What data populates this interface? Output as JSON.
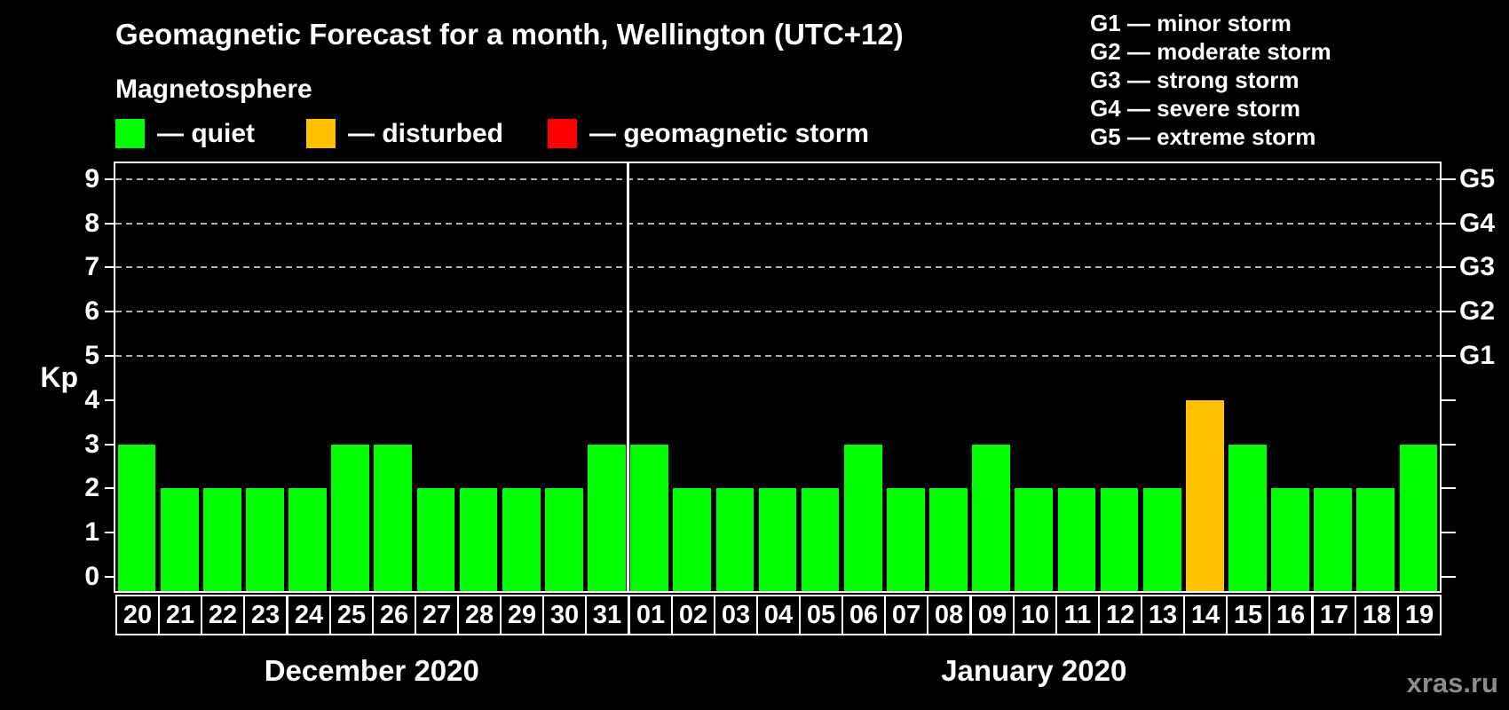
{
  "title": "Geomagnetic Forecast for a month, Wellington (UTC+12)",
  "subtitle": "Magnetosphere",
  "kp_legend": [
    {
      "name": "quiet",
      "label": "— quiet",
      "color": "#00ff00"
    },
    {
      "name": "disturbed",
      "label": "— disturbed",
      "color": "#ffc000"
    },
    {
      "name": "geomagnetic-storm",
      "label": "— geomagnetic storm",
      "color": "#ff0000"
    }
  ],
  "g_scale_legend": [
    "G1 — minor storm",
    "G2 — moderate storm",
    "G3 — strong storm",
    "G4 — severe storm",
    "G5 — extreme storm"
  ],
  "watermark": "xras.ru",
  "chart_data": {
    "type": "bar",
    "title": "Geomagnetic Forecast for a month, Wellington (UTC+12)",
    "ylabel": "Kp",
    "ylim": [
      0,
      9
    ],
    "yticks": [
      0,
      1,
      2,
      3,
      4,
      5,
      6,
      7,
      8,
      9
    ],
    "grid_values": [
      5,
      6,
      7,
      8,
      9
    ],
    "grid_style": "dashed",
    "right_axis": [
      {
        "value": 5,
        "label": "G1"
      },
      {
        "value": 6,
        "label": "G2"
      },
      {
        "value": 7,
        "label": "G3"
      },
      {
        "value": 8,
        "label": "G4"
      },
      {
        "value": 9,
        "label": "G5"
      }
    ],
    "colors": {
      "quiet": "#00ff00",
      "disturbed": "#ffc000",
      "storm": "#ff0000"
    },
    "groups": [
      {
        "label": "December 2020",
        "categories": [
          "20",
          "21",
          "22",
          "23",
          "24",
          "25",
          "26",
          "27",
          "28",
          "29",
          "30",
          "31"
        ],
        "values": [
          3,
          2,
          2,
          2,
          2,
          3,
          3,
          2,
          2,
          2,
          2,
          3
        ],
        "statuses": [
          "quiet",
          "quiet",
          "quiet",
          "quiet",
          "quiet",
          "quiet",
          "quiet",
          "quiet",
          "quiet",
          "quiet",
          "quiet",
          "quiet"
        ]
      },
      {
        "label": "January 2020",
        "categories": [
          "01",
          "02",
          "03",
          "04",
          "05",
          "06",
          "07",
          "08",
          "09",
          "10",
          "11",
          "12",
          "13",
          "14",
          "15",
          "16",
          "17",
          "18",
          "19"
        ],
        "values": [
          3,
          2,
          2,
          2,
          2,
          3,
          2,
          2,
          3,
          2,
          2,
          2,
          2,
          4,
          3,
          2,
          2,
          2,
          3
        ],
        "statuses": [
          "quiet",
          "quiet",
          "quiet",
          "quiet",
          "quiet",
          "quiet",
          "quiet",
          "quiet",
          "quiet",
          "quiet",
          "quiet",
          "quiet",
          "quiet",
          "disturbed",
          "quiet",
          "quiet",
          "quiet",
          "quiet",
          "quiet"
        ]
      }
    ]
  }
}
